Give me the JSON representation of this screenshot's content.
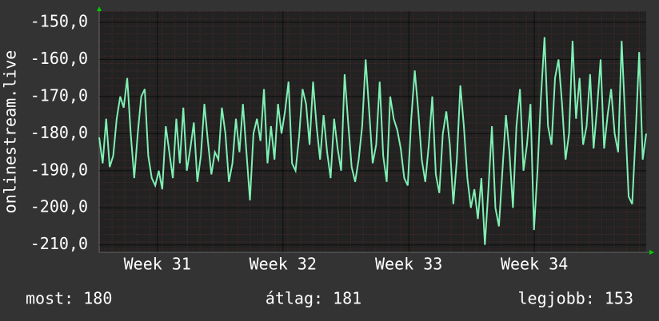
{
  "chart_data": {
    "type": "line",
    "y_label": "onlinestream.live",
    "series": [
      {
        "name": "onlinestream.live",
        "color": "#7ff0b4",
        "values": [
          -181,
          -188,
          -176,
          -189,
          -186,
          -176,
          -170,
          -173,
          -165,
          -180,
          -192,
          -180,
          -170,
          -168,
          -186,
          -192,
          -194,
          -190,
          -195,
          -178,
          -185,
          -192,
          -176,
          -188,
          -173,
          -190,
          -184,
          -177,
          -193,
          -186,
          -172,
          -182,
          -191,
          -185,
          -187,
          -173,
          -180,
          -193,
          -188,
          -176,
          -185,
          -172,
          -185,
          -198,
          -180,
          -176,
          -182,
          -168,
          -188,
          -178,
          -187,
          -172,
          -180,
          -174,
          -166,
          -188,
          -190,
          -181,
          -168,
          -172,
          -183,
          -166,
          -178,
          -187,
          -175,
          -185,
          -192,
          -176,
          -184,
          -190,
          -164,
          -177,
          -189,
          -193,
          -187,
          -178,
          -160,
          -174,
          -188,
          -183,
          -166,
          -186,
          -193,
          -170,
          -176,
          -179,
          -184,
          -192,
          -194,
          -176,
          -163,
          -174,
          -187,
          -193,
          -183,
          -170,
          -191,
          -196,
          -180,
          -174,
          -183,
          -199,
          -187,
          -167,
          -178,
          -192,
          -200,
          -195,
          -203,
          -192,
          -210,
          -195,
          -178,
          -200,
          -205,
          -190,
          -175,
          -185,
          -200,
          -178,
          -168,
          -190,
          -183,
          -172,
          -206,
          -190,
          -170,
          -154,
          -178,
          -183,
          -165,
          -160,
          -172,
          -187,
          -180,
          -155,
          -176,
          -165,
          -183,
          -178,
          -164,
          -184,
          -173,
          -160,
          -184,
          -175,
          -168,
          -180,
          -185,
          -155,
          -176,
          -197,
          -199,
          -180,
          -158,
          -187,
          -180
        ]
      }
    ],
    "xlim": [
      0,
      156
    ],
    "xticks": [
      {
        "value": 16.6,
        "label": "Week 31"
      },
      {
        "value": 52.4,
        "label": "Week 32"
      },
      {
        "value": 88.3,
        "label": "Week 33"
      },
      {
        "value": 124.1,
        "label": "Week 34"
      }
    ],
    "ylim": [
      -212,
      -147
    ],
    "yticks": [
      {
        "value": -210,
        "label": "-210,0"
      },
      {
        "value": -200,
        "label": "-200,0"
      },
      {
        "value": -190,
        "label": "-190,0"
      },
      {
        "value": -180,
        "label": "-180,0"
      },
      {
        "value": -170,
        "label": "-170,0"
      },
      {
        "value": -160,
        "label": "-160,0"
      },
      {
        "value": -150,
        "label": "-150,0"
      }
    ],
    "grid": true,
    "footer": [
      "most: 180",
      "átlag: 181",
      "legjobb: 153"
    ]
  }
}
